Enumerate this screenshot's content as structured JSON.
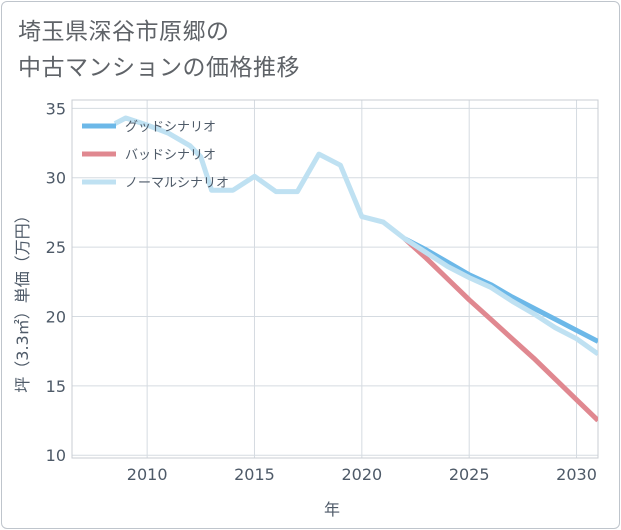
{
  "chart_data": {
    "type": "line",
    "title": [
      "埼玉県深谷市原郷の",
      "中古マンションの価格推移"
    ],
    "xlabel": "年",
    "ylabel": "坪（3.3㎡）単価（万円）",
    "xlim": [
      2006.5,
      2031
    ],
    "ylim": [
      9.8,
      35.6
    ],
    "xticks": [
      2010,
      2015,
      2020,
      2025,
      2030
    ],
    "yticks": [
      10,
      15,
      20,
      25,
      30,
      35
    ],
    "grid": true,
    "legend_position": "top-left",
    "series": [
      {
        "name": "グッドシナリオ",
        "color": "#6cb8e8",
        "x": [
          2022,
          2023,
          2024,
          2025,
          2026,
          2027,
          2028,
          2029,
          2030,
          2031
        ],
        "values": [
          25.6,
          24.8,
          23.9,
          23.0,
          22.3,
          21.4,
          20.6,
          19.8,
          19.0,
          18.2
        ]
      },
      {
        "name": "バッドシナリオ",
        "color": "#e08890",
        "x": [
          2022,
          2023,
          2024,
          2025,
          2026,
          2027,
          2028,
          2029,
          2030,
          2031
        ],
        "values": [
          25.6,
          24.2,
          22.7,
          21.2,
          19.8,
          18.4,
          17.0,
          15.5,
          14.0,
          12.5
        ]
      },
      {
        "name": "ノーマルシナリオ",
        "color": "#bfe1f2",
        "x": [
          2008.5,
          2009,
          2010,
          2011,
          2012,
          2012.5,
          2013,
          2014,
          2015,
          2016,
          2017,
          2018,
          2019,
          2020,
          2021,
          2022,
          2023,
          2024,
          2025,
          2026,
          2027,
          2028,
          2029,
          2030,
          2031
        ],
        "values": [
          33.9,
          34.3,
          33.8,
          33.2,
          32.3,
          31.5,
          29.1,
          29.1,
          30.1,
          29.0,
          29.0,
          31.7,
          30.9,
          27.2,
          26.8,
          25.6,
          24.6,
          23.6,
          22.8,
          22.1,
          21.1,
          20.2,
          19.2,
          18.4,
          17.3
        ]
      }
    ]
  }
}
